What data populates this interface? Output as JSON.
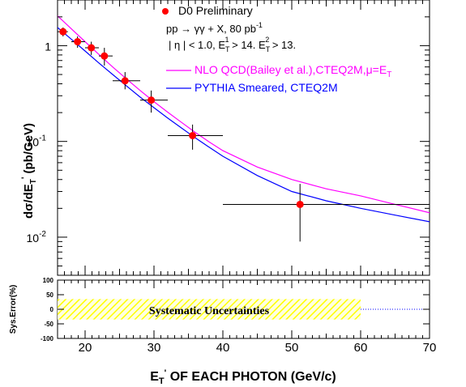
{
  "chart_data": [
    {
      "type": "scatter",
      "yscale": "log",
      "xlim": [
        16,
        70
      ],
      "ylim": [
        0.004,
        3
      ],
      "ylabel": "dσ/dE",
      "ylabel_sub": "T",
      "ylabel_unit": "(pb/GeV)",
      "ytick_labels": [
        {
          "value": 1,
          "base": "1",
          "exp": ""
        },
        {
          "value": 0.1,
          "base": "10",
          "exp": "-1"
        },
        {
          "value": 0.01,
          "base": "10",
          "exp": "-2"
        }
      ],
      "legend": {
        "marker_label": "D0 Preliminary",
        "process": "pp → γγ + X,  80 pb",
        "lumi_exp": "-1",
        "cuts": "| η | < 1.0,  E",
        "cut1_sup": "1",
        "cut1_val": " > 14.  E",
        "cut2_sup": "2",
        "cut2_val": " > 13."
      },
      "series": [
        {
          "name": "NLO QCD(Bailey et al.),CTEQ2M,μ=E",
          "name_sub": "T",
          "color": "#ff00ff",
          "x": [
            16,
            18,
            20,
            22,
            24,
            26,
            28,
            30,
            32,
            34,
            36,
            38,
            40,
            45,
            50,
            55,
            60,
            65,
            70
          ],
          "y": [
            2.05,
            1.5,
            1.1,
            0.81,
            0.6,
            0.45,
            0.34,
            0.26,
            0.202,
            0.158,
            0.124,
            0.099,
            0.08,
            0.054,
            0.04,
            0.032,
            0.027,
            0.022,
            0.018
          ]
        },
        {
          "name": "PYTHIA Smeared, CTEQ2M",
          "color": "#0000ff",
          "x": [
            16,
            18,
            20,
            22,
            24,
            26,
            28,
            30,
            32,
            34,
            36,
            38,
            40,
            45,
            50,
            55,
            60,
            65,
            70
          ],
          "y": [
            1.55,
            1.17,
            0.88,
            0.66,
            0.5,
            0.38,
            0.29,
            0.225,
            0.175,
            0.138,
            0.109,
            0.087,
            0.07,
            0.044,
            0.03,
            0.024,
            0.02,
            0.017,
            0.0145
          ]
        },
        {
          "name": "D0 Preliminary",
          "color": "#ff0000",
          "points": [
            {
              "x": 16.8,
              "y": 1.4,
              "xlo": 16,
              "xhi": 17.5,
              "ylo": 1.25,
              "yhi": 1.55
            },
            {
              "x": 18.9,
              "y": 1.1,
              "xlo": 18,
              "xhi": 20,
              "ylo": 0.95,
              "yhi": 1.25
            },
            {
              "x": 20.9,
              "y": 0.95,
              "xlo": 20,
              "xhi": 22,
              "ylo": 0.8,
              "yhi": 1.1
            },
            {
              "x": 22.8,
              "y": 0.78,
              "xlo": 22,
              "xhi": 24,
              "ylo": 0.62,
              "yhi": 0.95
            },
            {
              "x": 25.8,
              "y": 0.43,
              "xlo": 24,
              "xhi": 28,
              "ylo": 0.35,
              "yhi": 0.53
            },
            {
              "x": 29.6,
              "y": 0.27,
              "xlo": 28,
              "xhi": 32,
              "ylo": 0.2,
              "yhi": 0.34
            },
            {
              "x": 35.6,
              "y": 0.115,
              "xlo": 32,
              "xhi": 40,
              "ylo": 0.082,
              "yhi": 0.15
            },
            {
              "x": 51.2,
              "y": 0.022,
              "xlo": 40,
              "xhi": 70,
              "ylo": 0.009,
              "yhi": 0.036
            }
          ]
        }
      ]
    },
    {
      "type": "area",
      "xlim": [
        16,
        70
      ],
      "ylim": [
        -100,
        100
      ],
      "ylabel": "Sys.Error(%)",
      "yticks": [
        100,
        50,
        0,
        -50,
        -100
      ],
      "xticks": [
        20,
        30,
        40,
        50,
        60,
        70
      ],
      "xlabel_main": "E",
      "xlabel_sub": "T",
      "xlabel_rest": " OF EACH PHOTON  (GeV/c)",
      "band": {
        "label": "Systematic Uncertainties",
        "x": [
          16,
          60
        ],
        "y": [
          -35,
          35
        ],
        "color": "#ffff00"
      },
      "zero_line": {
        "x": [
          60,
          70
        ],
        "y": 0
      }
    }
  ]
}
